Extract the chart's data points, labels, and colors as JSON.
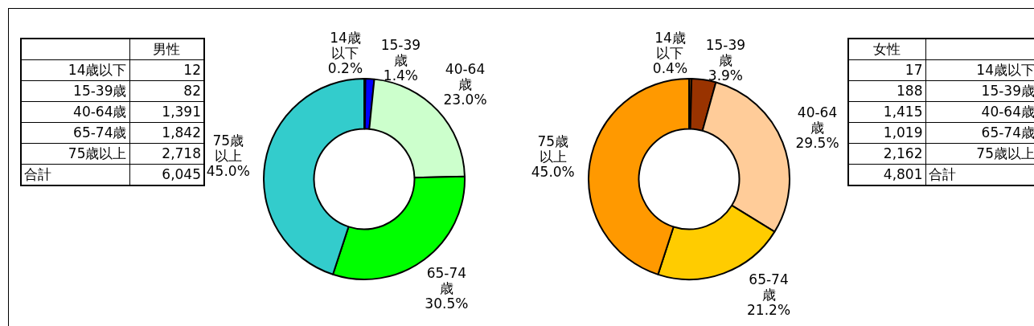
{
  "chart_data": [
    {
      "type": "other",
      "title": "男性",
      "categories": [
        "14歳以下",
        "15-39歳",
        "40-64歳",
        "65-74歳",
        "75歳以上"
      ],
      "value_labels": [
        "12",
        "82",
        "1,391",
        "1,842",
        "2,718"
      ],
      "totals": [
        "6,045"
      ],
      "annotations": [
        "合計"
      ]
    },
    {
      "type": "donut",
      "categories": [
        "14歳以下",
        "15-39歳",
        "40-64歳",
        "65-74歳",
        "75歳以上"
      ],
      "values": [
        0.2,
        1.4,
        23.0,
        30.5,
        45.0
      ],
      "colors": [
        "#000080",
        "#0000ff",
        "#ccffcc",
        "#00ff00",
        "#33cccc"
      ],
      "value_labels": [
        "0.2%",
        "1.4%",
        "23.0%",
        "30.5%",
        "45.0%"
      ]
    },
    {
      "type": "donut",
      "categories": [
        "14歳以下",
        "15-39歳",
        "40-64歳",
        "65-74歳",
        "75歳以上"
      ],
      "values": [
        0.4,
        3.9,
        29.5,
        21.2,
        45.0
      ],
      "colors": [
        "#663300",
        "#993300",
        "#ffcc99",
        "#ffcc00",
        "#ff9900"
      ],
      "value_labels": [
        "0.4%",
        "3.9%",
        "29.5%",
        "21.2%",
        "45.0%"
      ]
    },
    {
      "type": "other",
      "title": "女性",
      "categories": [
        "14歳以下",
        "15-39歳",
        "40-64歳",
        "65-74歳",
        "75歳以上"
      ],
      "value_labels": [
        "17",
        "188",
        "1,415",
        "1,019",
        "2,162"
      ],
      "totals": [
        "4,801"
      ],
      "annotations": [
        "合計"
      ]
    }
  ]
}
